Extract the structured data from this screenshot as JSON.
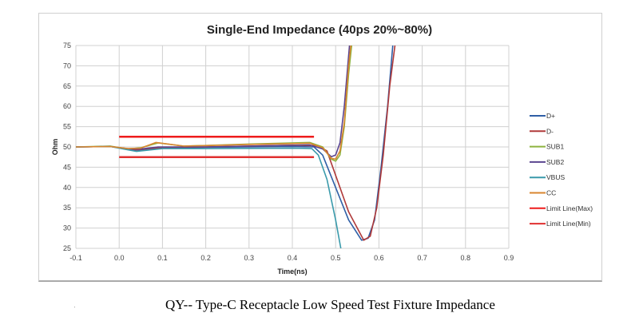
{
  "caption": "QY-- Type-C Receptacle Low Speed Test Fixture Impedance",
  "chart_data": {
    "type": "line",
    "title": "Single-End Impedance (40ps 20%~80%)",
    "xlabel": "Time(ns)",
    "ylabel": "Ohm",
    "xlim": [
      -0.1,
      0.9
    ],
    "ylim": [
      25,
      75
    ],
    "xticks": [
      "-0.1",
      "0.0",
      "0.1",
      "0.2",
      "0.3",
      "0.4",
      "0.5",
      "0.6",
      "0.7",
      "0.8",
      "0.9"
    ],
    "yticks": [
      "25",
      "30",
      "35",
      "40",
      "45",
      "50",
      "55",
      "60",
      "65",
      "70",
      "75"
    ],
    "grid": true,
    "legend_position": "right",
    "series": [
      {
        "name": "D+",
        "color": "#2f5fa6",
        "points": [
          [
            -0.1,
            50
          ],
          [
            -0.02,
            50.1
          ],
          [
            0.01,
            49.6
          ],
          [
            0.04,
            49.2
          ],
          [
            0.1,
            49.8
          ],
          [
            0.2,
            49.9
          ],
          [
            0.4,
            50.1
          ],
          [
            0.45,
            50
          ],
          [
            0.47,
            48
          ],
          [
            0.5,
            40
          ],
          [
            0.53,
            32
          ],
          [
            0.56,
            27
          ],
          [
            0.575,
            27.5
          ],
          [
            0.59,
            32
          ],
          [
            0.605,
            45
          ],
          [
            0.62,
            60
          ],
          [
            0.632,
            75
          ]
        ]
      },
      {
        "name": "D-",
        "color": "#b03a3a",
        "points": [
          [
            -0.1,
            50
          ],
          [
            -0.02,
            50.1
          ],
          [
            0.01,
            49.7
          ],
          [
            0.04,
            49.3
          ],
          [
            0.1,
            49.9
          ],
          [
            0.2,
            50
          ],
          [
            0.4,
            50.4
          ],
          [
            0.46,
            50.3
          ],
          [
            0.48,
            49
          ],
          [
            0.5,
            43
          ],
          [
            0.53,
            34
          ],
          [
            0.565,
            27
          ],
          [
            0.58,
            28
          ],
          [
            0.595,
            35
          ],
          [
            0.61,
            48
          ],
          [
            0.625,
            65
          ],
          [
            0.637,
            75
          ]
        ]
      },
      {
        "name": "SUB1",
        "color": "#8db33f",
        "points": [
          [
            -0.1,
            50
          ],
          [
            -0.02,
            50.2
          ],
          [
            0.02,
            49.5
          ],
          [
            0.05,
            49.8
          ],
          [
            0.09,
            51
          ],
          [
            0.15,
            50.2
          ],
          [
            0.3,
            50.7
          ],
          [
            0.44,
            51.1
          ],
          [
            0.47,
            50
          ],
          [
            0.49,
            47
          ],
          [
            0.5,
            46.5
          ],
          [
            0.51,
            48
          ],
          [
            0.52,
            55
          ],
          [
            0.53,
            68
          ],
          [
            0.537,
            75
          ]
        ]
      },
      {
        "name": "SUB2",
        "color": "#5a4590",
        "points": [
          [
            -0.1,
            50
          ],
          [
            -0.02,
            50.1
          ],
          [
            0.02,
            49.5
          ],
          [
            0.05,
            49.5
          ],
          [
            0.09,
            50
          ],
          [
            0.2,
            50
          ],
          [
            0.44,
            50.5
          ],
          [
            0.47,
            49.5
          ],
          [
            0.49,
            47.6
          ],
          [
            0.5,
            48
          ],
          [
            0.51,
            51
          ],
          [
            0.52,
            60
          ],
          [
            0.532,
            75
          ]
        ]
      },
      {
        "name": "VBUS",
        "color": "#3a9aab",
        "points": [
          [
            -0.1,
            50
          ],
          [
            -0.02,
            50.1
          ],
          [
            0.01,
            49.5
          ],
          [
            0.04,
            48.9
          ],
          [
            0.1,
            49.6
          ],
          [
            0.2,
            49.6
          ],
          [
            0.4,
            49.7
          ],
          [
            0.445,
            49.6
          ],
          [
            0.46,
            48
          ],
          [
            0.48,
            42
          ],
          [
            0.5,
            32
          ],
          [
            0.512,
            25
          ]
        ]
      },
      {
        "name": "CC",
        "color": "#d9852f",
        "points": [
          [
            -0.1,
            50
          ],
          [
            -0.02,
            50.1
          ],
          [
            0.02,
            49.6
          ],
          [
            0.05,
            49.7
          ],
          [
            0.085,
            51.1
          ],
          [
            0.15,
            50.2
          ],
          [
            0.3,
            50.6
          ],
          [
            0.44,
            50.9
          ],
          [
            0.47,
            49.8
          ],
          [
            0.49,
            47.2
          ],
          [
            0.5,
            47
          ],
          [
            0.51,
            49
          ],
          [
            0.52,
            56
          ],
          [
            0.53,
            70
          ],
          [
            0.535,
            75
          ]
        ]
      },
      {
        "name": "Limit Line(Max)",
        "color": "#ee1c1c",
        "points": [
          [
            0,
            52.5
          ],
          [
            0.45,
            52.5
          ]
        ]
      },
      {
        "name": "Limit Line(Min)",
        "color": "#e03030",
        "points": [
          [
            0,
            47.5
          ],
          [
            0.45,
            47.5
          ]
        ]
      }
    ]
  }
}
